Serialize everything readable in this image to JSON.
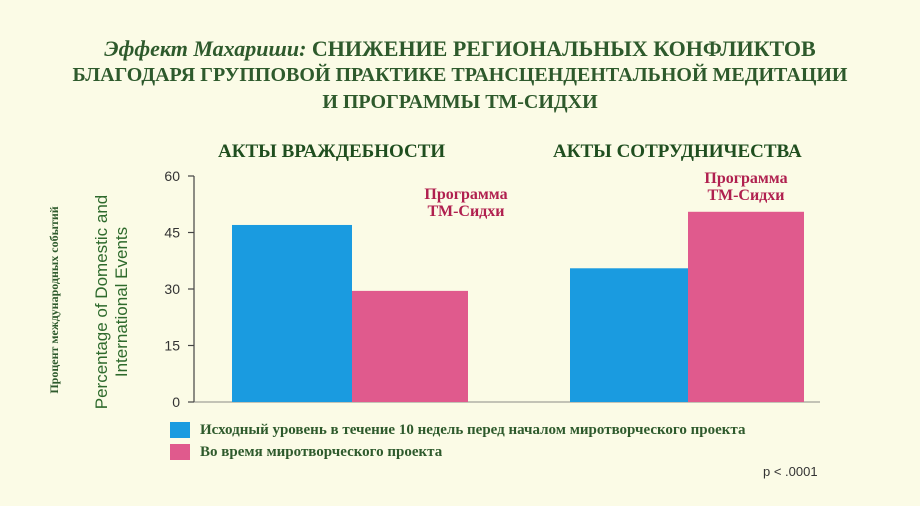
{
  "title": {
    "line1_italic": "Эффект Махариши:",
    "line1_rest": "СНИЖЕНИЕ РЕГИОНАЛЬНЫХ КОНФЛИКТОВ",
    "line2": "БЛАГОДАРЯ ГРУППОВОЙ ПРАКТИКЕ ТРАНСЦЕНДЕНТАЛЬНОЙ МЕДИТАЦИИ",
    "line3": "И ПРОГРАММЫ ТМ-СИДХИ"
  },
  "axis": {
    "ylabel_ru": "Процент международных событий",
    "ylabel_en": "Percentage of Domestic and International Events"
  },
  "legend": [
    {
      "label": "Исходный уровень в течение 10 недель перед началом миротворческого проекта",
      "color": "#1a9be0"
    },
    {
      "label": "Во время миротворческого проекта",
      "color": "#e05a8d"
    }
  ],
  "annotation": "p < .0001",
  "colors": {
    "baseline": "#1a9be0",
    "during": "#e05a8d",
    "program_label": "#b0204f"
  },
  "chart_data": {
    "type": "bar",
    "categories": [
      "АКТЫ ВРАЖДЕБНОСТИ",
      "АКТЫ СОТРУДНИЧЕСТВА"
    ],
    "series": [
      {
        "name": "Исходный уровень в течение 10 недель перед началом миротворческого проекта",
        "values": [
          47,
          35.5
        ]
      },
      {
        "name": "Во время миротворческого проекта",
        "values": [
          29.5,
          50.5
        ]
      }
    ],
    "bar_labels": [
      "Программа ТМ-Сидхи",
      "Программа ТМ-Сидхи"
    ],
    "yticks": [
      0,
      15,
      30,
      45,
      60
    ],
    "ylim": [
      0,
      60
    ],
    "legend_position": "bottom"
  }
}
